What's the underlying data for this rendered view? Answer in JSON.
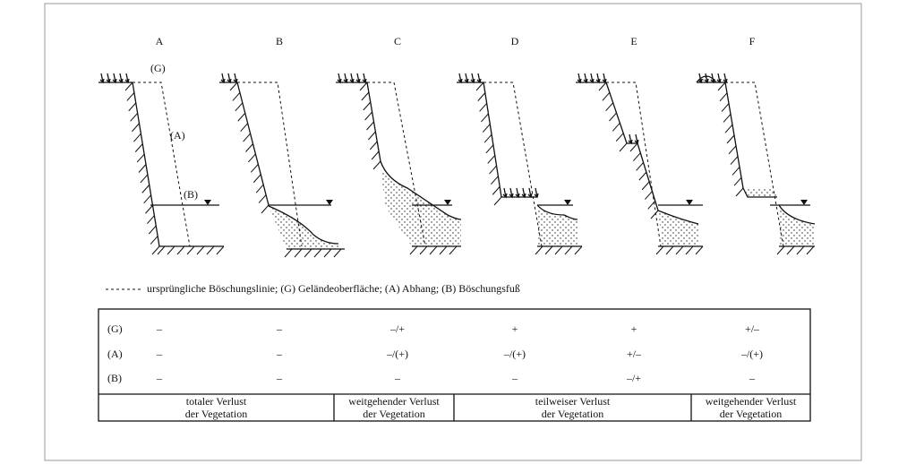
{
  "columns": [
    "A",
    "B",
    "C",
    "D",
    "E",
    "F"
  ],
  "annotations": {
    "g": "(G)",
    "a": "(A)",
    "b": "(B)"
  },
  "legend": "ursprüngliche Böschungslinie;  (G) Geländeoberfläche;  (A) Abhang;  (B) Böschungsfuß",
  "table": {
    "rows": [
      {
        "label": "(G)",
        "cells": [
          "–",
          "–",
          "–/+",
          "+",
          "+",
          "+/–"
        ]
      },
      {
        "label": "(A)",
        "cells": [
          "–",
          "–",
          "–/(+)",
          "–/(+)",
          "+/–",
          "–/(+)"
        ]
      },
      {
        "label": "(B)",
        "cells": [
          "–",
          "–",
          "–",
          "–",
          "–/+",
          "–"
        ]
      }
    ],
    "summary": [
      {
        "lines": [
          "totaler Verlust",
          "der Vegetation"
        ]
      },
      {
        "lines": [
          "weitgehender Verlust",
          "der Vegetation"
        ]
      },
      {
        "lines": [
          "teilweiser Verlust",
          "der Vegetation"
        ]
      },
      {
        "lines": [
          "weitgehender Verlust",
          "der Vegetation"
        ]
      }
    ]
  }
}
